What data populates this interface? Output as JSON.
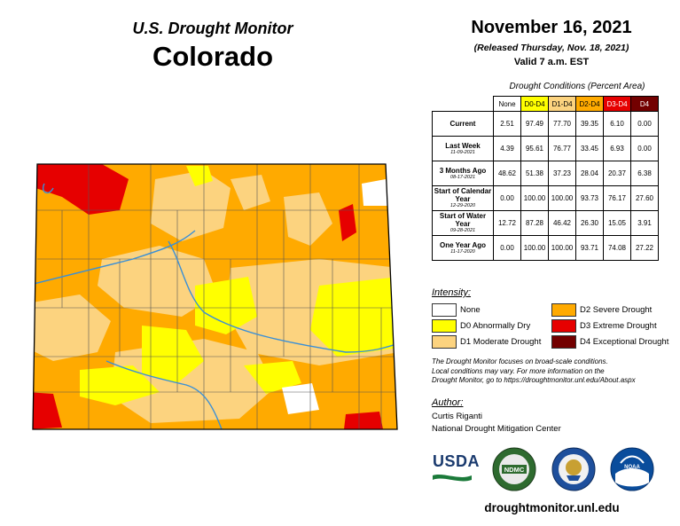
{
  "header": {
    "map_title": "U.S. Drought Monitor",
    "state": "Colorado",
    "date": "November 16, 2021",
    "released": "(Released Thursday, Nov. 18, 2021)",
    "valid": "Valid 7 a.m. EST"
  },
  "table": {
    "caption": "Drought Conditions (Percent Area)",
    "columns": [
      "None",
      "D0-D4",
      "D1-D4",
      "D2-D4",
      "D3-D4",
      "D4"
    ],
    "rows": [
      {
        "label": "Current",
        "date": "",
        "values": [
          "2.51",
          "97.49",
          "77.70",
          "39.35",
          "6.10",
          "0.00"
        ]
      },
      {
        "label": "Last Week",
        "date": "11-09-2021",
        "values": [
          "4.39",
          "95.61",
          "76.77",
          "33.45",
          "6.93",
          "0.00"
        ]
      },
      {
        "label": "3 Months Ago",
        "date": "08-17-2021",
        "values": [
          "48.62",
          "51.38",
          "37.23",
          "28.04",
          "20.37",
          "6.38"
        ]
      },
      {
        "label": "Start of Calendar Year",
        "date": "12-29-2020",
        "values": [
          "0.00",
          "100.00",
          "100.00",
          "93.73",
          "76.17",
          "27.60"
        ]
      },
      {
        "label": "Start of Water Year",
        "date": "09-28-2021",
        "values": [
          "12.72",
          "87.28",
          "46.42",
          "26.30",
          "15.05",
          "3.91"
        ]
      },
      {
        "label": "One Year Ago",
        "date": "11-17-2020",
        "values": [
          "0.00",
          "100.00",
          "100.00",
          "93.71",
          "74.08",
          "27.22"
        ]
      }
    ]
  },
  "legend": {
    "title": "Intensity:",
    "items": [
      {
        "label": "None",
        "color": "#ffffff"
      },
      {
        "label": "D0 Abnormally Dry",
        "color": "#ffff00"
      },
      {
        "label": "D1 Moderate Drought",
        "color": "#fcd37f"
      },
      {
        "label": "D2 Severe Drought",
        "color": "#ffaa00"
      },
      {
        "label": "D3 Extreme Drought",
        "color": "#e60000"
      },
      {
        "label": "D4 Exceptional Drought",
        "color": "#730000"
      }
    ]
  },
  "disclaimer": {
    "line1": "The Drought Monitor focuses on broad-scale conditions.",
    "line2": "Local conditions may vary. For more information on the",
    "line3": "Drought Monitor, go to https://droughtmonitor.unl.edu/About.aspx"
  },
  "author": {
    "title": "Author:",
    "name": "Curtis Riganti",
    "org": "National Drought Mitigation Center"
  },
  "logos": {
    "usda": "USDA",
    "ndmc": "NDMC",
    "noaa": "NOAA"
  },
  "url": "droughtmonitor.unl.edu",
  "colors": {
    "none": "#ffffff",
    "d0": "#ffff00",
    "d1": "#fcd37f",
    "d2": "#ffaa00",
    "d3": "#e60000",
    "d4": "#730000",
    "river": "#3a8fd6"
  }
}
